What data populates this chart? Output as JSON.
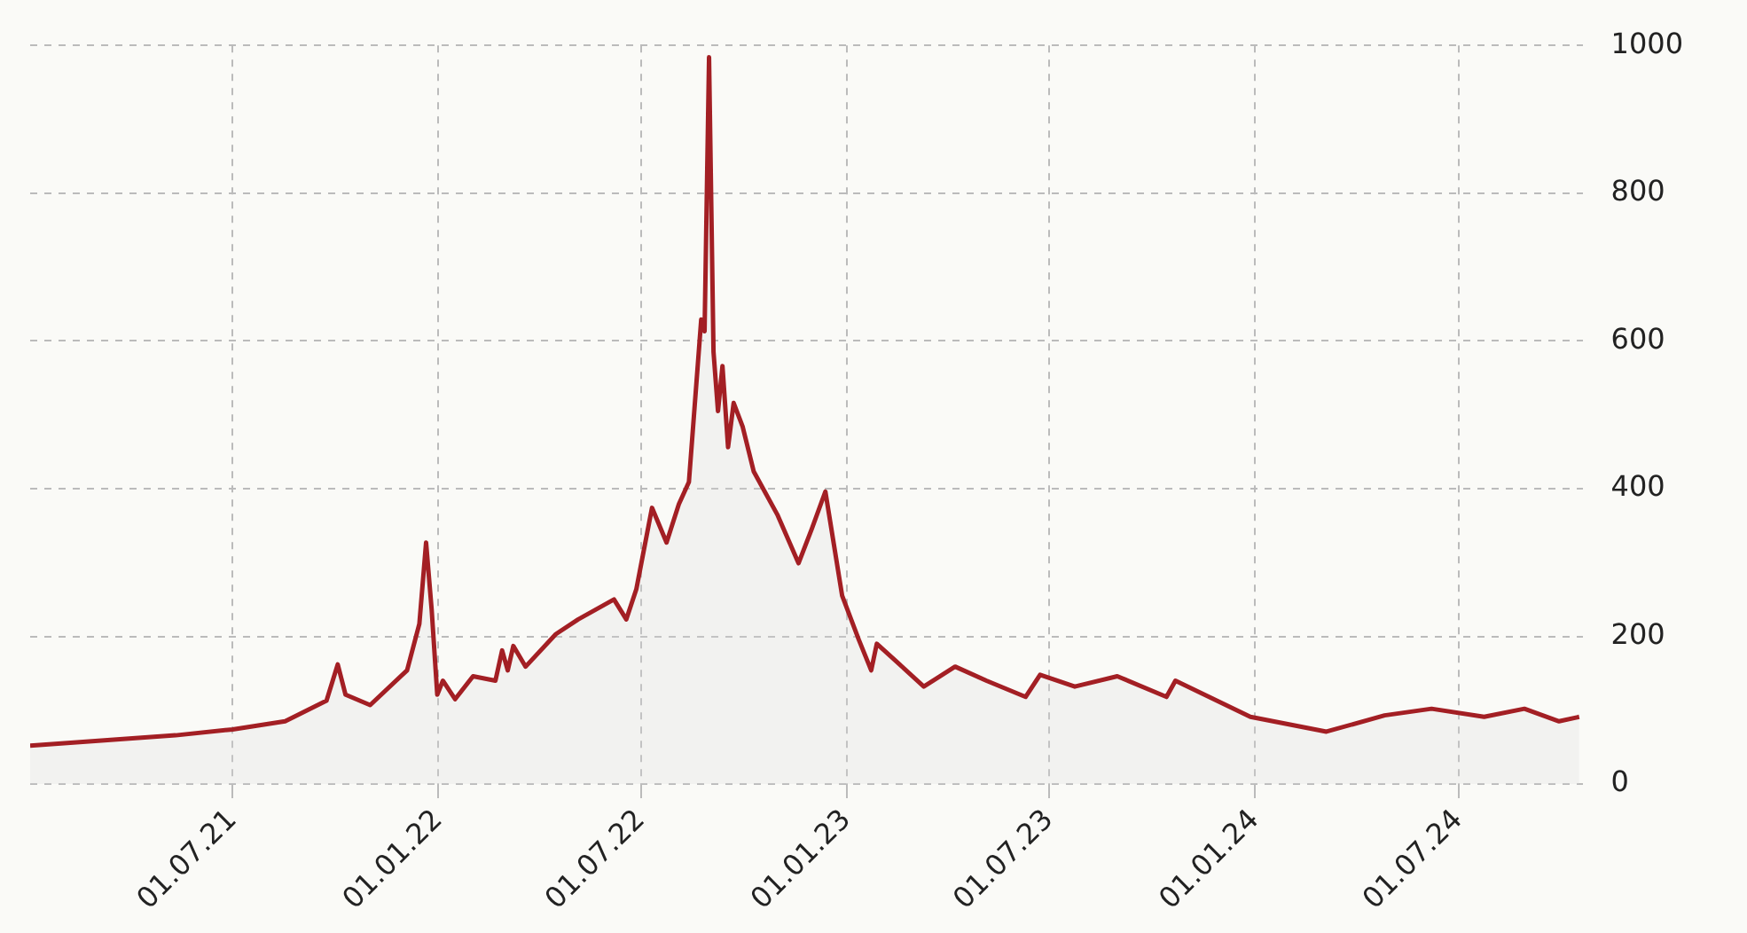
{
  "chart_data": {
    "type": "area",
    "x": [
      "2021-01-01",
      "2021-05-11",
      "2021-07-01",
      "2021-08-17",
      "2021-09-23",
      "2021-10-03",
      "2021-10-10",
      "2021-11-01",
      "2021-12-04",
      "2021-12-15",
      "2021-12-21",
      "2021-12-26",
      "2021-12-31",
      "2022-01-05",
      "2022-01-16",
      "2022-02-01",
      "2022-02-21",
      "2022-02-27",
      "2022-03-04",
      "2022-03-09",
      "2022-03-20",
      "2022-04-16",
      "2022-05-06",
      "2022-06-07",
      "2022-06-18",
      "2022-06-27",
      "2022-07-11",
      "2022-07-24",
      "2022-08-04",
      "2022-08-13",
      "2022-08-24",
      "2022-08-27",
      "2022-08-31",
      "2022-09-04",
      "2022-09-08",
      "2022-09-12",
      "2022-09-17",
      "2022-09-22",
      "2022-09-30",
      "2022-10-10",
      "2022-10-31",
      "2022-11-19",
      "2022-12-01",
      "2022-12-13",
      "2022-12-28",
      "2023-01-12",
      "2023-01-23",
      "2023-01-28",
      "2023-02-13",
      "2023-03-11",
      "2023-04-08",
      "2023-05-06",
      "2023-06-10",
      "2023-06-23",
      "2023-07-24",
      "2023-08-31",
      "2023-10-14",
      "2023-10-22",
      "2023-12-28",
      "2024-03-05",
      "2024-04-26",
      "2024-06-07",
      "2024-07-24",
      "2024-08-29",
      "2024-09-29",
      "2024-10-17"
    ],
    "series": [
      {
        "color": "#a31f24",
        "values": [
          52,
          66,
          74,
          85,
          113,
          162,
          121,
          107,
          154,
          217,
          327,
          236,
          121,
          140,
          115,
          146,
          140,
          181,
          154,
          187,
          159,
          203,
          223,
          250,
          223,
          264,
          374,
          327,
          379,
          409,
          629,
          613,
          984,
          585,
          505,
          566,
          456,
          516,
          484,
          423,
          365,
          299,
          346,
          396,
          255,
          195,
          154,
          190,
          168,
          132,
          159,
          140,
          118,
          148,
          132,
          146,
          118,
          140,
          91,
          71,
          93,
          102,
          91,
          102,
          85,
          91
        ]
      }
    ],
    "xlim": [
      "2021-01-01",
      "2024-10-20"
    ],
    "xticks": [
      {
        "value": "2021-07-01",
        "label": "01.07.21"
      },
      {
        "value": "2022-01-01",
        "label": "01.01.22"
      },
      {
        "value": "2022-07-01",
        "label": "01.07.22"
      },
      {
        "value": "2023-01-01",
        "label": "01.01.23"
      },
      {
        "value": "2023-07-01",
        "label": "01.07.23"
      },
      {
        "value": "2024-01-01",
        "label": "01.01.24"
      },
      {
        "value": "2024-07-01",
        "label": "01.07.24"
      }
    ],
    "ylim": [
      0,
      1000
    ],
    "yticks": [
      0,
      200,
      400,
      600,
      800,
      1000
    ],
    "grid": true,
    "legend": false,
    "marker": "none",
    "line_style": "solid"
  }
}
